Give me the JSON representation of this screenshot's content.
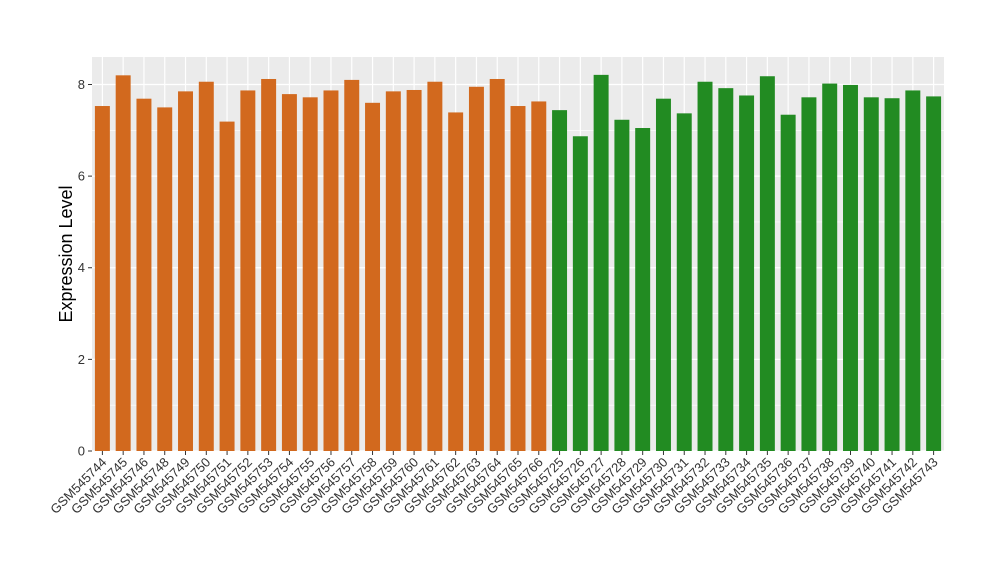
{
  "chart_data": {
    "type": "bar",
    "title": "",
    "xlabel": "",
    "ylabel": "Expression Level",
    "ylim": [
      0,
      8.6
    ],
    "yticks": [
      0,
      2,
      4,
      6,
      8
    ],
    "ytick_labels": [
      "0",
      "2",
      "4",
      "6",
      "8"
    ],
    "grid": true,
    "legend": "none",
    "categories": [
      "GSM545744",
      "GSM545745",
      "GSM545746",
      "GSM545748",
      "GSM545749",
      "GSM545750",
      "GSM545751",
      "GSM545752",
      "GSM545753",
      "GSM545754",
      "GSM545755",
      "GSM545756",
      "GSM545757",
      "GSM545758",
      "GSM545759",
      "GSM545760",
      "GSM545761",
      "GSM545762",
      "GSM545763",
      "GSM545764",
      "GSM545765",
      "GSM545766",
      "GSM545725",
      "GSM545726",
      "GSM545727",
      "GSM545728",
      "GSM545729",
      "GSM545730",
      "GSM545731",
      "GSM545732",
      "GSM545733",
      "GSM545734",
      "GSM545735",
      "GSM545736",
      "GSM545737",
      "GSM545738",
      "GSM545739",
      "GSM545740",
      "GSM545741",
      "GSM545742",
      "GSM545743"
    ],
    "values": [
      7.53,
      8.2,
      7.69,
      7.5,
      7.85,
      8.06,
      7.19,
      7.87,
      8.12,
      7.79,
      7.72,
      7.87,
      8.1,
      7.6,
      7.85,
      7.88,
      8.06,
      7.39,
      7.95,
      8.12,
      7.53,
      7.63,
      7.44,
      6.87,
      8.21,
      7.23,
      7.05,
      7.69,
      7.37,
      8.06,
      7.92,
      7.76,
      8.18,
      7.34,
      7.72,
      8.02,
      7.99,
      7.72,
      7.7,
      7.87,
      7.74
    ],
    "bar_colors": [
      "#D2691E",
      "#D2691E",
      "#D2691E",
      "#D2691E",
      "#D2691E",
      "#D2691E",
      "#D2691E",
      "#D2691E",
      "#D2691E",
      "#D2691E",
      "#D2691E",
      "#D2691E",
      "#D2691E",
      "#D2691E",
      "#D2691E",
      "#D2691E",
      "#D2691E",
      "#D2691E",
      "#D2691E",
      "#D2691E",
      "#D2691E",
      "#D2691E",
      "#228B22",
      "#228B22",
      "#228B22",
      "#228B22",
      "#228B22",
      "#228B22",
      "#228B22",
      "#228B22",
      "#228B22",
      "#228B22",
      "#228B22",
      "#228B22",
      "#228B22",
      "#228B22",
      "#228B22",
      "#228B22",
      "#228B22",
      "#228B22",
      "#228B22"
    ],
    "panel_background": "#EBEBEB",
    "grid_color": "#FFFFFF"
  }
}
